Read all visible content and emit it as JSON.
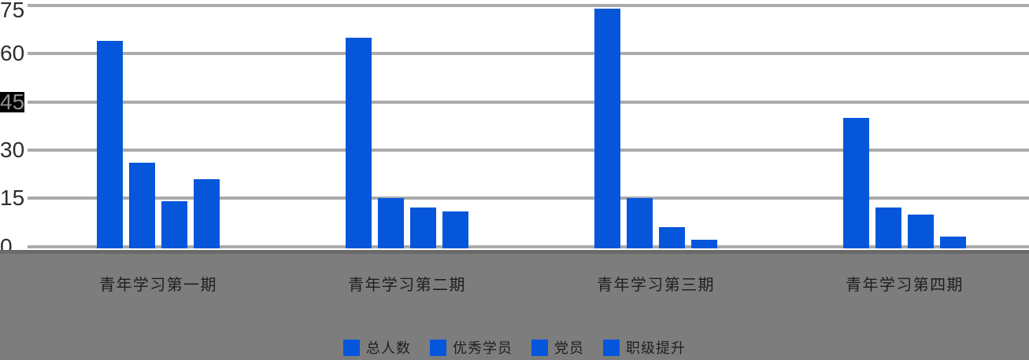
{
  "chart_data": {
    "type": "bar",
    "title": "",
    "categories": [
      "青年学习第一期",
      "青年学习第二期",
      "青年学习第三期",
      "青年学习第四期"
    ],
    "series": [
      {
        "name": "总人数",
        "values": [
          64,
          65,
          74,
          40
        ]
      },
      {
        "name": "优秀学员",
        "values": [
          26,
          15,
          15,
          12
        ]
      },
      {
        "name": "党员",
        "values": [
          14,
          12,
          6,
          10
        ]
      },
      {
        "name": "职级提升",
        "values": [
          21,
          11,
          2,
          3
        ]
      }
    ],
    "y_ticks": [
      75,
      60,
      45,
      30,
      15,
      0
    ],
    "ylim": [
      0,
      75
    ],
    "highlighted_tick": 45,
    "grid": true,
    "legend_position": "bottom",
    "legend_labels": [
      "总人数",
      "优秀学员",
      "党员",
      "职级提升"
    ],
    "xlabel": "",
    "ylabel": ""
  },
  "colors": {
    "bar": "#0656DC",
    "gridline": "#ABABAB",
    "bottom_band": "#7d7d7d",
    "axis_line": "#6a6a6a",
    "tick_text": "#2e2e2e",
    "label_text": "#1f1f1f",
    "tick_highlight_bg": "#000000"
  }
}
